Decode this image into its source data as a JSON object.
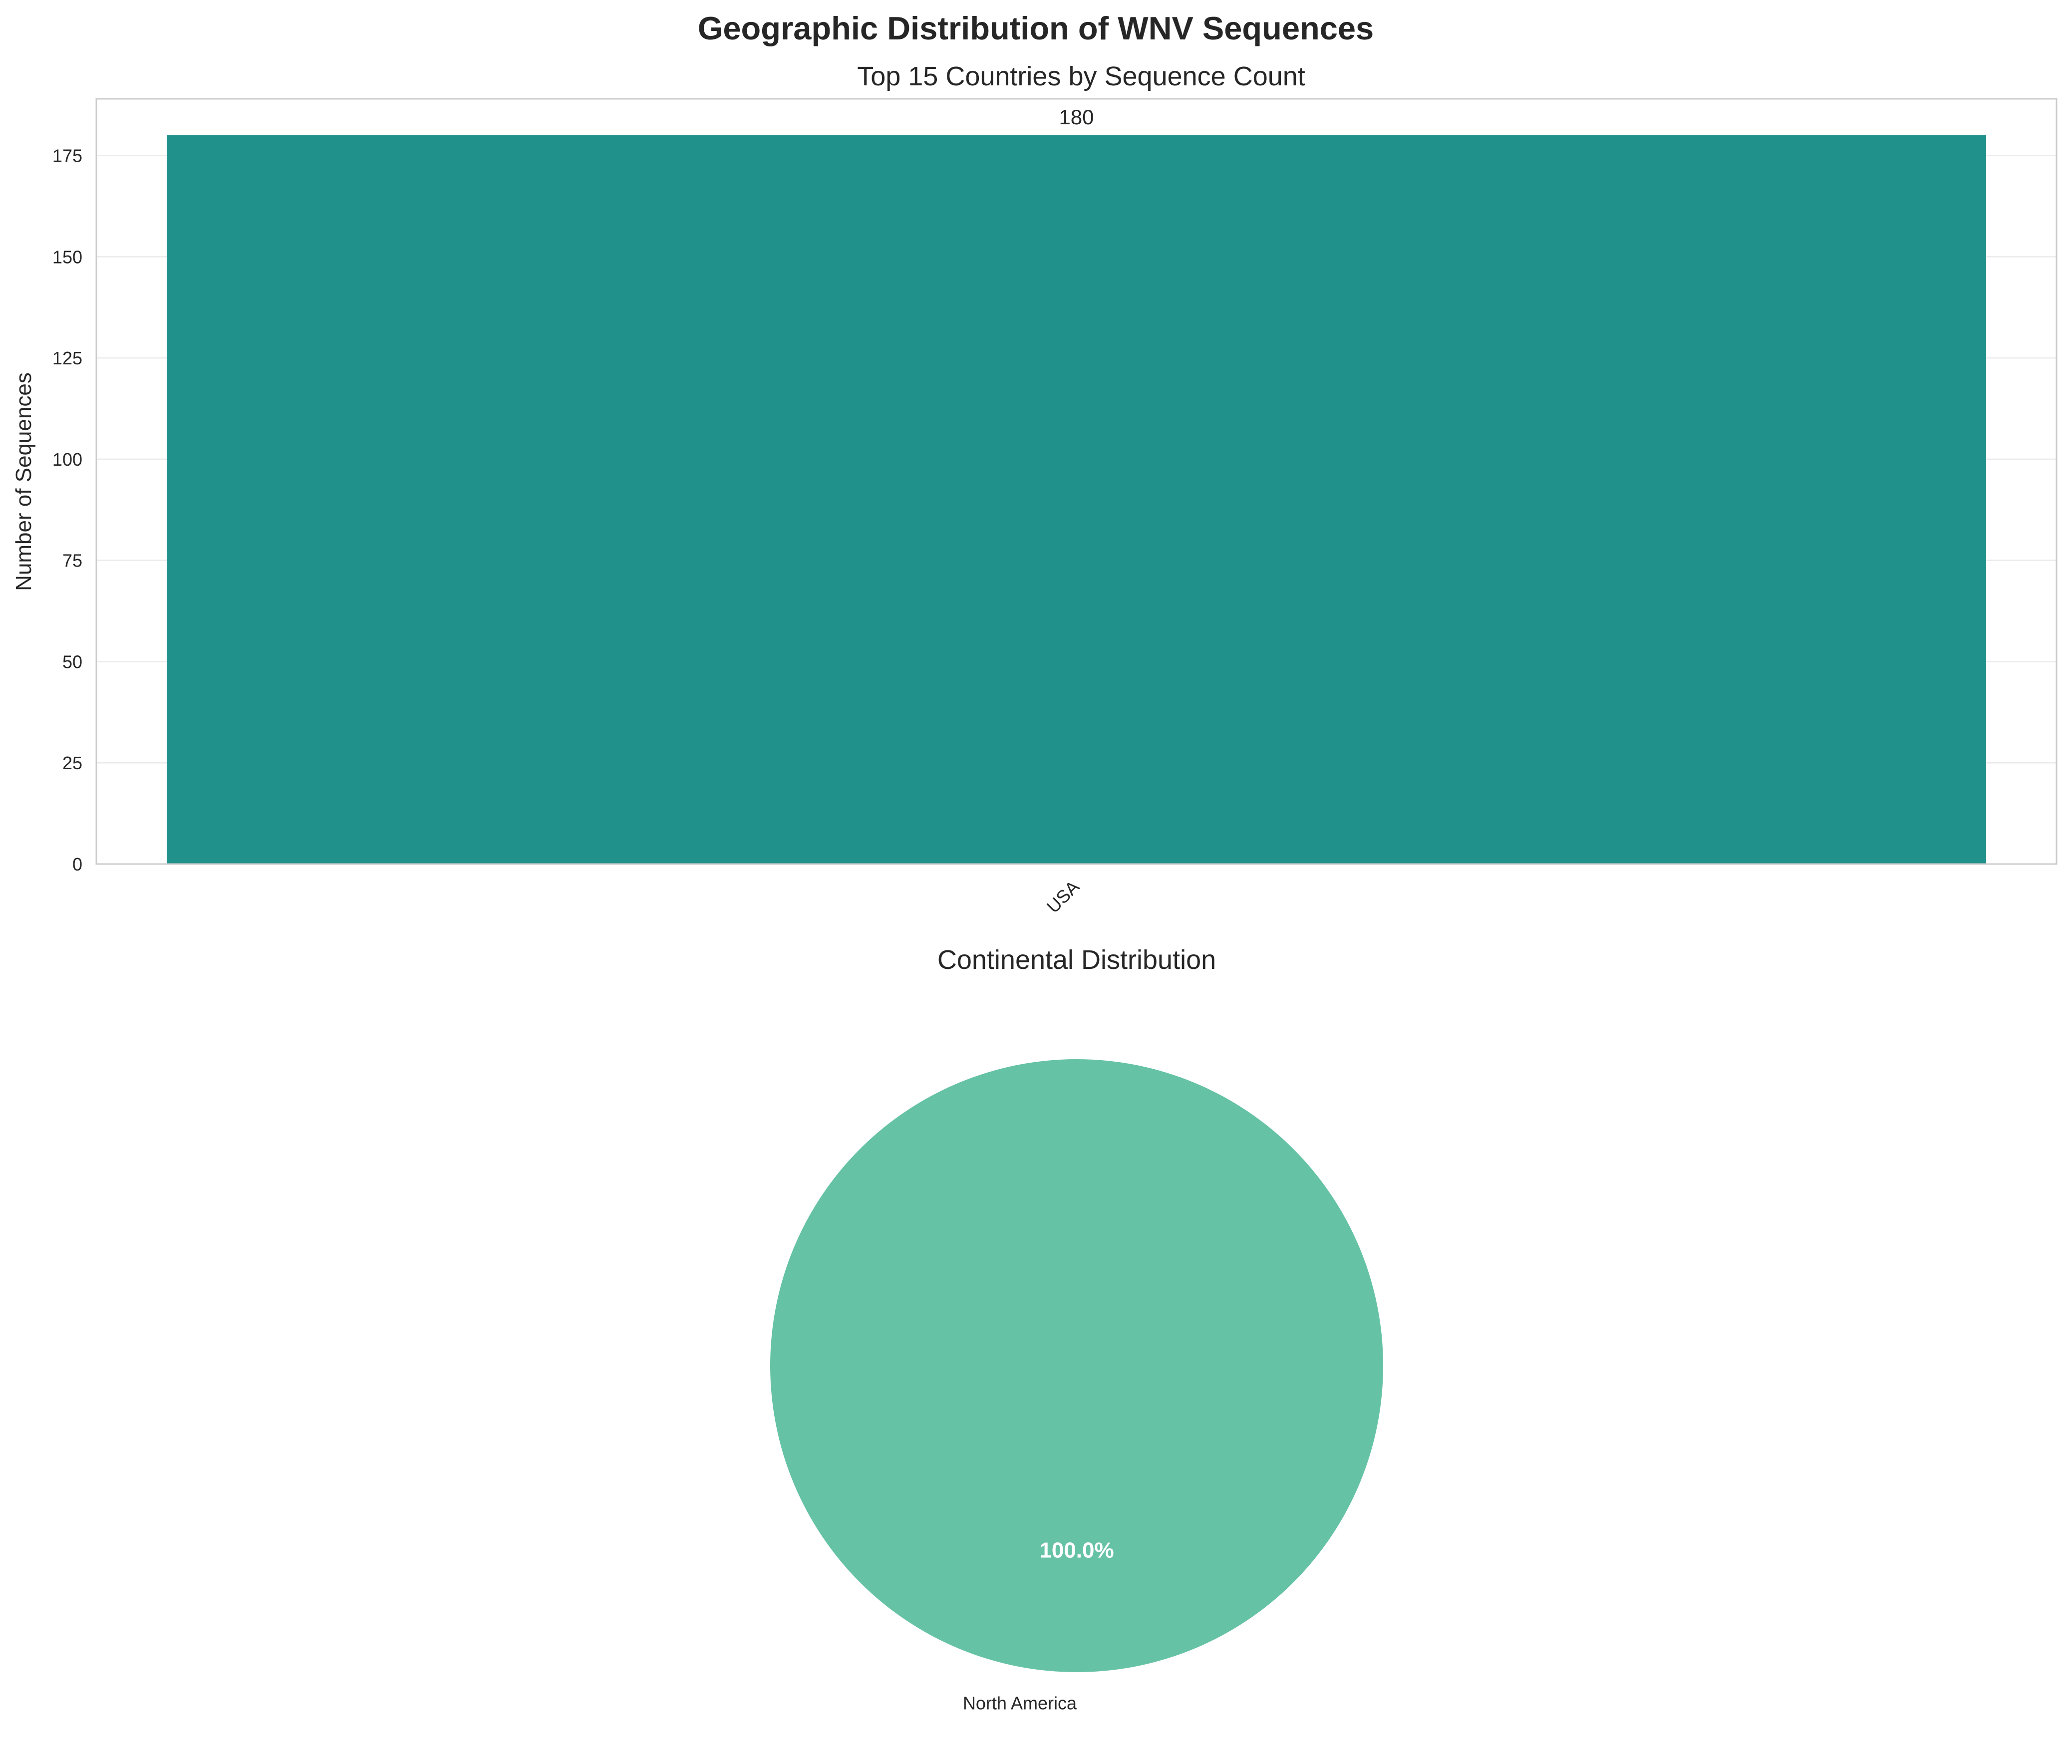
{
  "figure": {
    "title": "Geographic Distribution of WNV Sequences"
  },
  "chart_data": [
    {
      "type": "bar",
      "title": "Top 15 Countries by Sequence Count",
      "xlabel": "",
      "ylabel": "Number of Sequences",
      "categories": [
        "USA"
      ],
      "values": [
        180
      ],
      "data_labels": [
        "180"
      ],
      "ylim": [
        0,
        189
      ],
      "yticks": [
        0,
        25,
        50,
        75,
        100,
        125,
        150,
        175
      ],
      "xtick_rotation": 45,
      "grid": true,
      "bar_color": "#21918c"
    },
    {
      "type": "pie",
      "title": "Continental Distribution",
      "labels": [
        "North America"
      ],
      "values": [
        100.0
      ],
      "pct_labels": [
        "100.0%"
      ],
      "colors": [
        "#66c2a5"
      ]
    }
  ]
}
